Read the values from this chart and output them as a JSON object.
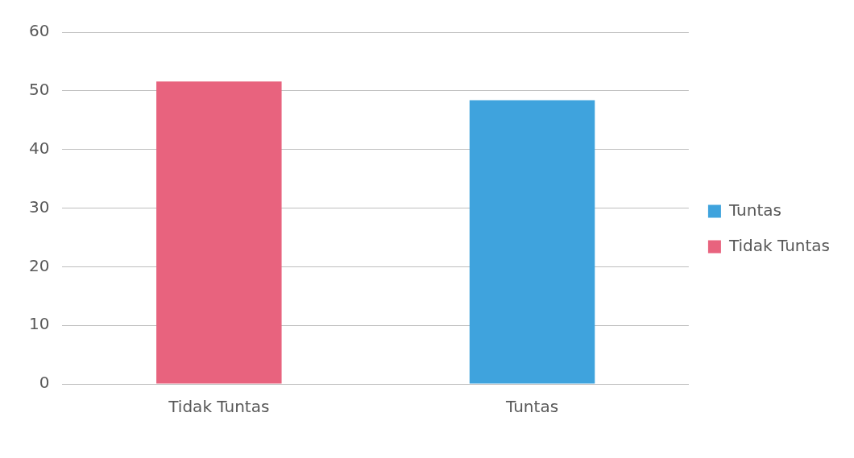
{
  "chart_data": {
    "type": "bar",
    "categories": [
      "Tidak Tuntas",
      "Tuntas"
    ],
    "series": [
      {
        "name": "Tuntas",
        "color": "#3fa3dd",
        "values": [
          null,
          48.4
        ]
      },
      {
        "name": "Tidak Tuntas",
        "color": "#e8637e",
        "values": [
          51.6,
          null
        ]
      }
    ],
    "ylim": [
      0,
      60
    ],
    "yticks": [
      0,
      10,
      20,
      30,
      40,
      50,
      60
    ],
    "grid": "y",
    "legend": "right"
  }
}
